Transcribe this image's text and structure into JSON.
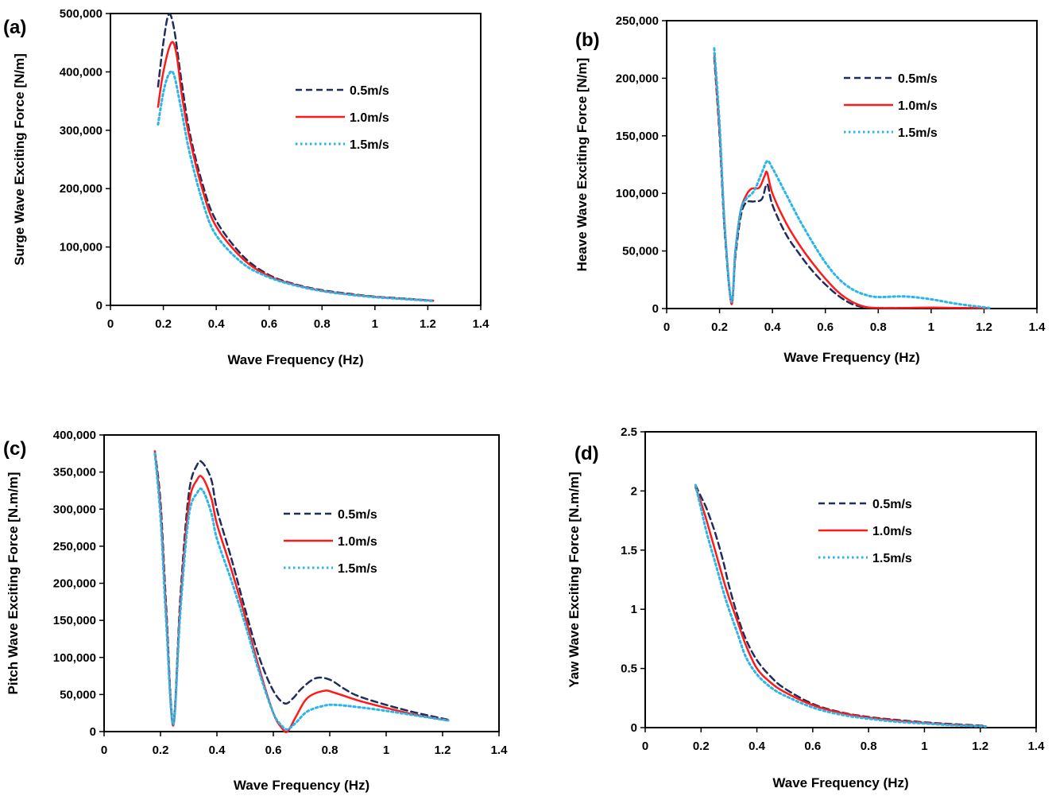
{
  "series_styles": [
    {
      "color": "#1f2d5c",
      "dash": "8,5",
      "width": 2.5
    },
    {
      "color": "#ff1a1a",
      "dash": "",
      "width": 2.5
    },
    {
      "color": "#2ab6e8",
      "dash": "2.5,3.5",
      "width": 3
    }
  ],
  "chart_data": [
    {
      "type": "line",
      "panel_label": "(a)",
      "xlabel": "Wave Frequency (Hz)",
      "ylabel": "Surge Wave Exciting Force [N/m]",
      "xlim": [
        0,
        1.4
      ],
      "ylim": [
        0,
        500000
      ],
      "xticks": [
        0,
        0.2,
        0.4,
        0.6,
        0.8,
        1,
        1.2,
        1.4
      ],
      "xtick_labels": [
        "0",
        "0.2",
        "0.4",
        "0.6",
        "0.8",
        "1",
        "1.2",
        "1.4"
      ],
      "yticks": [
        0,
        100000,
        200000,
        300000,
        400000,
        500000
      ],
      "ytick_labels": [
        "0",
        "100,000",
        "200,000",
        "300,000",
        "400,000",
        "500,000"
      ],
      "legend": "upper-right",
      "series": [
        {
          "name": "0.5m/s",
          "x": [
            0.18,
            0.2,
            0.22,
            0.24,
            0.27,
            0.3,
            0.35,
            0.4,
            0.5,
            0.6,
            0.7,
            0.8,
            0.9,
            1.0,
            1.1,
            1.22
          ],
          "y": [
            375000,
            450000,
            498000,
            475000,
            380000,
            295000,
            205000,
            145000,
            85000,
            52000,
            36000,
            26000,
            20000,
            15000,
            12000,
            8000
          ]
        },
        {
          "name": "1.0m/s",
          "x": [
            0.18,
            0.2,
            0.23,
            0.25,
            0.27,
            0.3,
            0.35,
            0.4,
            0.5,
            0.6,
            0.7,
            0.8,
            0.9,
            1.0,
            1.1,
            1.22
          ],
          "y": [
            340000,
            400000,
            450000,
            430000,
            360000,
            285000,
            195000,
            135000,
            80000,
            50000,
            35000,
            25000,
            19000,
            14500,
            11500,
            8000
          ]
        },
        {
          "name": "1.5m/s",
          "x": [
            0.18,
            0.2,
            0.22,
            0.24,
            0.27,
            0.3,
            0.35,
            0.4,
            0.5,
            0.6,
            0.7,
            0.8,
            0.9,
            1.0,
            1.1,
            1.22
          ],
          "y": [
            310000,
            365000,
            395000,
            395000,
            330000,
            260000,
            175000,
            120000,
            72000,
            48000,
            34000,
            24500,
            18500,
            14000,
            11000,
            7500
          ]
        }
      ]
    },
    {
      "type": "line",
      "panel_label": "(b)",
      "xlabel": "Wave Frequency (Hz)",
      "ylabel": "Heave Wave Exciting Force [N/m]",
      "xlim": [
        0,
        1.4
      ],
      "ylim": [
        0,
        250000
      ],
      "xticks": [
        0,
        0.2,
        0.4,
        0.6,
        0.8,
        1,
        1.2,
        1.4
      ],
      "xtick_labels": [
        "0",
        "0.2",
        "0.4",
        "0.6",
        "0.8",
        "1",
        "1.2",
        "1.4"
      ],
      "yticks": [
        0,
        50000,
        100000,
        150000,
        200000,
        250000
      ],
      "ytick_labels": [
        "0",
        "50,000",
        "100,000",
        "150,000",
        "200,000",
        "250,000"
      ],
      "legend": "upper-right",
      "series": [
        {
          "name": "0.5m/s",
          "x": [
            0.18,
            0.2,
            0.22,
            0.245,
            0.26,
            0.28,
            0.3,
            0.33,
            0.36,
            0.38,
            0.4,
            0.45,
            0.5,
            0.55,
            0.6,
            0.65,
            0.7,
            0.75,
            0.8,
            0.9,
            1.0,
            1.1,
            1.22
          ],
          "y": [
            218000,
            150000,
            65000,
            5000,
            45000,
            80000,
            92000,
            93000,
            95000,
            108000,
            90000,
            65000,
            48000,
            33000,
            21000,
            11000,
            4000,
            1000,
            500,
            500,
            500,
            500,
            500
          ]
        },
        {
          "name": "1.0m/s",
          "x": [
            0.18,
            0.2,
            0.22,
            0.245,
            0.26,
            0.28,
            0.3,
            0.32,
            0.35,
            0.37,
            0.38,
            0.4,
            0.45,
            0.5,
            0.55,
            0.6,
            0.65,
            0.7,
            0.75,
            0.8,
            0.9,
            1.0,
            1.1,
            1.22
          ],
          "y": [
            222000,
            155000,
            70000,
            4000,
            50000,
            85000,
            98000,
            104000,
            105000,
            115000,
            118000,
            100000,
            75000,
            56000,
            40000,
            26000,
            14000,
            6000,
            1500,
            500,
            500,
            800,
            500,
            300
          ]
        },
        {
          "name": "1.5m/s",
          "x": [
            0.18,
            0.2,
            0.22,
            0.245,
            0.26,
            0.28,
            0.3,
            0.33,
            0.36,
            0.38,
            0.4,
            0.45,
            0.5,
            0.55,
            0.6,
            0.65,
            0.7,
            0.75,
            0.8,
            0.9,
            1.0,
            1.1,
            1.22
          ],
          "y": [
            226000,
            160000,
            70000,
            6000,
            50000,
            85000,
            95000,
            102000,
            118000,
            128000,
            122000,
            100000,
            78000,
            58000,
            40000,
            26000,
            17000,
            12000,
            10000,
            10500,
            8000,
            4000,
            500
          ]
        }
      ]
    },
    {
      "type": "line",
      "panel_label": "(c)",
      "xlabel": "Wave Frequency (Hz)",
      "ylabel": "Pitch Wave Exciting Force [N.m/m]",
      "xlim": [
        0,
        1.4
      ],
      "ylim": [
        0,
        400000
      ],
      "xticks": [
        0,
        0.2,
        0.4,
        0.6,
        0.8,
        1,
        1.2,
        1.4
      ],
      "xtick_labels": [
        "0",
        "0.2",
        "0.4",
        "0.6",
        "0.8",
        "1",
        "1.2",
        "1.4"
      ],
      "yticks": [
        0,
        50000,
        100000,
        150000,
        200000,
        250000,
        300000,
        350000,
        400000
      ],
      "ytick_labels": [
        "0",
        "50,000",
        "100,000",
        "150,000",
        "200,000",
        "250,000",
        "300,000",
        "350,000",
        "400,000"
      ],
      "legend": "upper-right",
      "series": [
        {
          "name": "0.5m/s",
          "x": [
            0.18,
            0.2,
            0.22,
            0.245,
            0.27,
            0.3,
            0.33,
            0.35,
            0.38,
            0.4,
            0.45,
            0.5,
            0.55,
            0.6,
            0.64,
            0.67,
            0.7,
            0.75,
            0.8,
            0.85,
            0.9,
            1.0,
            1.1,
            1.22
          ],
          "y": [
            378000,
            310000,
            170000,
            12000,
            180000,
            320000,
            360000,
            362000,
            340000,
            300000,
            235000,
            165000,
            100000,
            55000,
            38000,
            45000,
            58000,
            72000,
            70000,
            58000,
            48000,
            36000,
            26000,
            16000
          ]
        },
        {
          "name": "1.0m/s",
          "x": [
            0.18,
            0.2,
            0.22,
            0.245,
            0.27,
            0.3,
            0.33,
            0.35,
            0.38,
            0.4,
            0.45,
            0.5,
            0.55,
            0.6,
            0.63,
            0.65,
            0.68,
            0.72,
            0.78,
            0.82,
            0.9,
            1.0,
            1.1,
            1.22
          ],
          "y": [
            378000,
            300000,
            160000,
            8000,
            170000,
            305000,
            340000,
            342000,
            315000,
            280000,
            220000,
            155000,
            85000,
            25000,
            5000,
            0,
            20000,
            45000,
            55000,
            52000,
            42000,
            32000,
            23000,
            15000
          ]
        },
        {
          "name": "1.5m/s",
          "x": [
            0.18,
            0.2,
            0.22,
            0.245,
            0.27,
            0.3,
            0.33,
            0.35,
            0.38,
            0.4,
            0.45,
            0.5,
            0.55,
            0.6,
            0.63,
            0.65,
            0.68,
            0.72,
            0.78,
            0.82,
            0.9,
            1.0,
            1.1,
            1.22
          ],
          "y": [
            375000,
            290000,
            150000,
            10000,
            160000,
            290000,
            322000,
            325000,
            295000,
            260000,
            205000,
            145000,
            80000,
            25000,
            8000,
            3000,
            12000,
            27000,
            35000,
            36000,
            33000,
            28000,
            22000,
            15000
          ]
        }
      ]
    },
    {
      "type": "line",
      "panel_label": "(d)",
      "xlabel": "Wave Frequency (Hz)",
      "ylabel": "Yaw Wave Exciting Force [N.m/m]",
      "xlim": [
        0,
        1.4
      ],
      "ylim": [
        0,
        2.5
      ],
      "xticks": [
        0,
        0.2,
        0.4,
        0.6,
        0.8,
        1,
        1.2,
        1.4
      ],
      "xtick_labels": [
        "0",
        "0.2",
        "0.4",
        "0.6",
        "0.8",
        "1",
        "1.2",
        "1.4"
      ],
      "yticks": [
        0,
        0.5,
        1,
        1.5,
        2,
        2.5
      ],
      "ytick_labels": [
        "0",
        "0.5",
        "1",
        "1.5",
        "2",
        "2.5"
      ],
      "legend": "upper-right",
      "series": [
        {
          "name": "0.5m/s",
          "x": [
            0.18,
            0.2,
            0.22,
            0.25,
            0.28,
            0.3,
            0.33,
            0.36,
            0.4,
            0.45,
            0.5,
            0.6,
            0.7,
            0.8,
            0.9,
            1.0,
            1.1,
            1.22
          ],
          "y": [
            2.05,
            1.95,
            1.85,
            1.65,
            1.4,
            1.2,
            0.95,
            0.75,
            0.57,
            0.43,
            0.33,
            0.2,
            0.13,
            0.09,
            0.065,
            0.045,
            0.03,
            0.015
          ]
        },
        {
          "name": "1.0m/s",
          "x": [
            0.18,
            0.2,
            0.22,
            0.25,
            0.28,
            0.3,
            0.33,
            0.36,
            0.4,
            0.45,
            0.5,
            0.6,
            0.7,
            0.8,
            0.9,
            1.0,
            1.1,
            1.22
          ],
          "y": [
            2.03,
            1.9,
            1.75,
            1.5,
            1.25,
            1.1,
            0.9,
            0.7,
            0.5,
            0.38,
            0.3,
            0.19,
            0.125,
            0.085,
            0.06,
            0.04,
            0.025,
            0.01
          ]
        },
        {
          "name": "1.5m/s",
          "x": [
            0.18,
            0.2,
            0.22,
            0.25,
            0.28,
            0.3,
            0.33,
            0.36,
            0.4,
            0.45,
            0.5,
            0.6,
            0.7,
            0.8,
            0.9,
            1.0,
            1.1,
            1.22
          ],
          "y": [
            2.05,
            1.85,
            1.65,
            1.4,
            1.15,
            1.0,
            0.8,
            0.6,
            0.45,
            0.34,
            0.27,
            0.17,
            0.11,
            0.075,
            0.05,
            0.035,
            0.02,
            0.01
          ]
        }
      ]
    }
  ]
}
